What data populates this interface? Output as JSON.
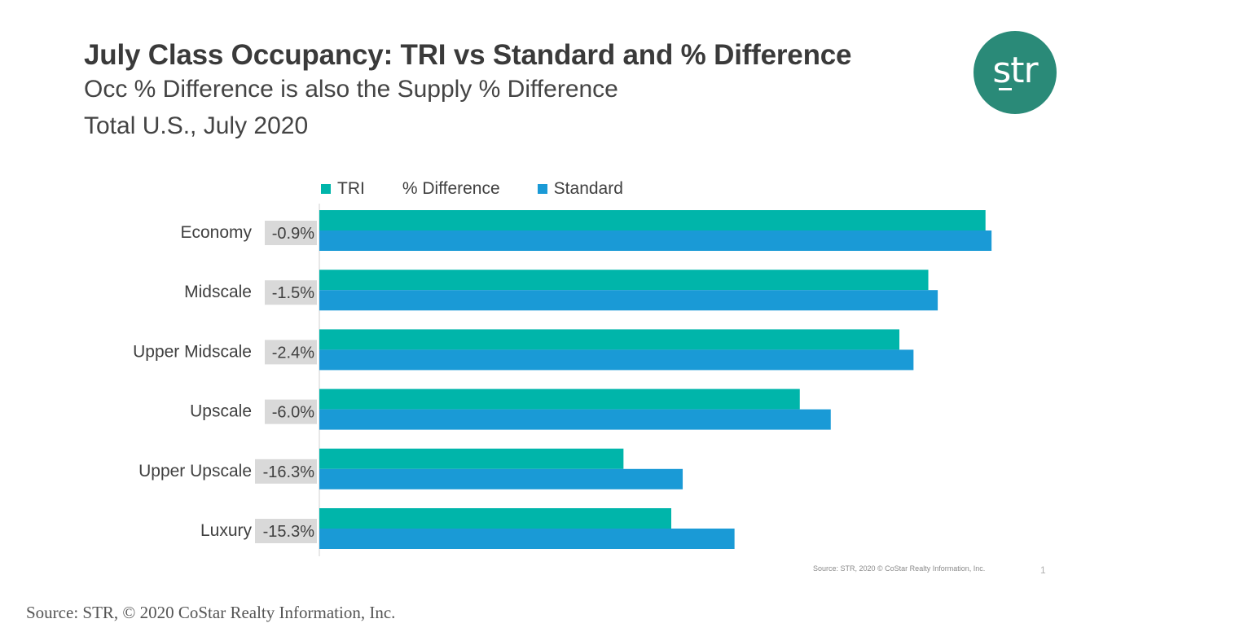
{
  "title": "July Class Occupancy: TRI vs Standard and % Difference",
  "subtitle1": "Occ % Difference is also the Supply % Difference",
  "subtitle2": "Total U.S., July 2020",
  "logo": {
    "text": "str",
    "color": "#2a8a78"
  },
  "footnote": "Source: STR, 2020 © CoStar Realty Information, Inc.",
  "page_number": "1",
  "source": "Source: STR, © 2020 CoStar Realty Information, Inc.",
  "colors": {
    "tri": "#00b5aa",
    "standard": "#1a9ad6",
    "label_box": "#d9d9d9"
  },
  "chart_data": {
    "type": "bar",
    "orientation": "horizontal",
    "categories": [
      "Economy",
      "Midscale",
      "Upper Midscale",
      "Upscale",
      "Upper Upscale",
      "Luxury"
    ],
    "series": [
      {
        "name": "TRI",
        "values": [
          99.0,
          90.5,
          86.2,
          71.4,
          45.2,
          52.3
        ]
      },
      {
        "name": "Standard",
        "values": [
          99.9,
          91.9,
          88.3,
          76.0,
          54.0,
          61.7
        ]
      }
    ],
    "difference_label": "% Difference",
    "difference_values": [
      "-0.9%",
      "-1.5%",
      "-2.4%",
      "-6.0%",
      "-16.3%",
      "-15.3%"
    ],
    "legend": {
      "position": "top-left",
      "items": [
        "TRI",
        "% Difference",
        "Standard"
      ]
    },
    "grid": false,
    "axis_visible": false,
    "xlim": [
      0,
      100
    ]
  }
}
